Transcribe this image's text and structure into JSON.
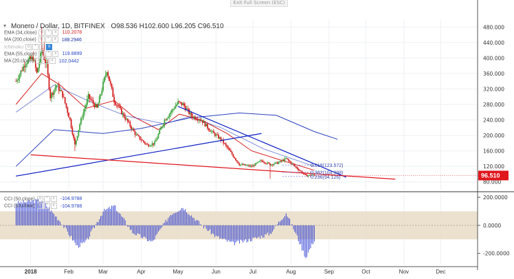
{
  "ui": {
    "exit_fullscreen": "Exit Full Screen (ESC)"
  },
  "header": {
    "symbol": "Monero / Dollar, 1D, BITFINEX",
    "open": "O98.536",
    "high": "H102.600",
    "low": "L96.205",
    "close": "C96.510"
  },
  "indicators": [
    {
      "name": "EMA (34,close)",
      "value": "110.2078",
      "color": "#d51f1f"
    },
    {
      "name": "MA (200,close)",
      "value": "188.2946",
      "color": "#1b2ea6"
    },
    {
      "name": "Ichimoku",
      "value": "",
      "color": "#b4b4b4"
    },
    {
      "name": "EMA (55,close)",
      "value": "119.8899",
      "color": "#2a47c4"
    },
    {
      "name": "MA (20,close)",
      "value": "102.0442",
      "color": "#2a47c4"
    }
  ],
  "cci_legend": [
    {
      "name": "CCI (50,close)",
      "value": "-104.9788"
    },
    {
      "name": "CCI (50,close)",
      "value": "-104.9788"
    }
  ],
  "colors": {
    "up": "#3da33d",
    "down": "#d51f1f",
    "trend_blue": "#0d1fc6",
    "trend_red": "#e0161d",
    "ema34": "#d51f1f",
    "ma200": "#2a3fbd",
    "cci": "#1f2fd0",
    "cci_band": "#e8dcc6",
    "current": "#e0161d"
  },
  "chart_data": [
    {
      "type": "candlestick",
      "title": "Monero / Dollar, 1D, BITFINEX",
      "x": {
        "type": "date",
        "ticks": [
          "2018",
          "Feb",
          "Mar",
          "Apr",
          "May",
          "Jun",
          "Jul",
          "Aug",
          "Sep",
          "Oct",
          "Nov",
          "Dec"
        ]
      },
      "y": {
        "ticks": [
          80,
          120,
          160,
          200,
          240,
          280,
          320,
          360,
          400,
          440,
          480
        ],
        "tick_labels": [
          "80.000",
          "120.000",
          "160.000",
          "200.000",
          "240.000",
          "280.000",
          "320.000",
          "360.000",
          "400.000",
          "440.000",
          "480.000"
        ],
        "range": [
          60,
          500
        ]
      },
      "current_price": {
        "value": 96.51,
        "label": "96.510"
      },
      "price_path": [
        [
          "2017-12-20",
          340
        ],
        [
          "2017-12-28",
          390
        ],
        [
          "2018-01-03",
          400
        ],
        [
          "2018-01-06",
          360
        ],
        [
          "2018-01-10",
          420
        ],
        [
          "2018-01-14",
          380
        ],
        [
          "2018-01-17",
          300
        ],
        [
          "2018-01-22",
          330
        ],
        [
          "2018-01-27",
          305
        ],
        [
          "2018-02-02",
          240
        ],
        [
          "2018-02-06",
          175
        ],
        [
          "2018-02-10",
          230
        ],
        [
          "2018-02-17",
          300
        ],
        [
          "2018-02-24",
          270
        ],
        [
          "2018-03-04",
          370
        ],
        [
          "2018-03-10",
          290
        ],
        [
          "2018-03-18",
          250
        ],
        [
          "2018-03-28",
          200
        ],
        [
          "2018-04-06",
          175
        ],
        [
          "2018-04-12",
          180
        ],
        [
          "2018-04-20",
          240
        ],
        [
          "2018-04-25",
          260
        ],
        [
          "2018-05-01",
          285
        ],
        [
          "2018-05-05",
          280
        ],
        [
          "2018-05-12",
          250
        ],
        [
          "2018-05-20",
          240
        ],
        [
          "2018-05-28",
          210
        ],
        [
          "2018-06-05",
          190
        ],
        [
          "2018-06-12",
          160
        ],
        [
          "2018-06-20",
          125
        ],
        [
          "2018-06-30",
          120
        ],
        [
          "2018-07-08",
          135
        ],
        [
          "2018-07-15",
          125
        ],
        [
          "2018-07-22",
          130
        ],
        [
          "2018-07-28",
          140
        ],
        [
          "2018-08-05",
          118
        ],
        [
          "2018-08-13",
          96
        ],
        [
          "2018-08-18",
          98
        ],
        [
          "2018-08-20",
          96.51
        ]
      ],
      "volatility_spikes": [
        [
          "2018-01-10",
          480
        ],
        [
          "2018-01-12",
          440
        ],
        [
          "2018-02-06",
          160
        ],
        [
          "2018-07-15",
          88
        ]
      ],
      "series": [
        {
          "name": "EMA (34,close)",
          "points": [
            [
              "2017-12-20",
              280
            ],
            [
              "2018-01-10",
              360
            ],
            [
              "2018-01-25",
              330
            ],
            [
              "2018-02-15",
              270
            ],
            [
              "2018-03-10",
              290
            ],
            [
              "2018-03-25",
              250
            ],
            [
              "2018-04-15",
              215
            ],
            [
              "2018-05-02",
              255
            ],
            [
              "2018-05-20",
              240
            ],
            [
              "2018-06-10",
              205
            ],
            [
              "2018-06-30",
              160
            ],
            [
              "2018-07-20",
              140
            ],
            [
              "2018-08-20",
              110
            ]
          ]
        },
        {
          "name": "MA (200,close)",
          "points": [
            [
              "2017-12-20",
              120
            ],
            [
              "2018-01-20",
              215
            ],
            [
              "2018-03-01",
              205
            ],
            [
              "2018-04-01",
              218
            ],
            [
              "2018-05-10",
              245
            ],
            [
              "2018-06-20",
              258
            ],
            [
              "2018-07-20",
              252
            ],
            [
              "2018-08-20",
              210
            ],
            [
              "2018-09-08",
              190
            ]
          ]
        },
        {
          "name": "EMA (55,close)",
          "points": [
            [
              "2017-12-20",
              260
            ],
            [
              "2018-01-20",
              330
            ],
            [
              "2018-02-20",
              285
            ],
            [
              "2018-03-20",
              250
            ],
            [
              "2018-04-20",
              230
            ],
            [
              "2018-05-10",
              248
            ],
            [
              "2018-06-05",
              220
            ],
            [
              "2018-07-10",
              165
            ],
            [
              "2018-08-20",
              120
            ]
          ]
        }
      ],
      "trendlines": [
        {
          "color": "blue",
          "from": [
            "2017-12-20",
            95
          ],
          "to": [
            "2018-07-08",
            205
          ]
        },
        {
          "color": "blue",
          "from": [
            "2018-05-01",
            275
          ],
          "to": [
            "2018-09-15",
            92
          ]
        },
        {
          "color": "red",
          "from": [
            "2018-01-01",
            150
          ],
          "to": [
            "2018-10-25",
            87
          ]
        }
      ],
      "fib_levels": [
        {
          "label": "0.618(123.572)",
          "value": 123.572
        },
        {
          "label": "0.382(104.998)",
          "value": 104.998
        },
        {
          "label": "0.236(94.126)",
          "value": 94.126
        }
      ]
    },
    {
      "type": "line",
      "title": "CCI (50,close)",
      "y": {
        "ticks": [
          200,
          0,
          -200
        ],
        "tick_labels": [
          "200.0000",
          "0.0000",
          "-200.0000"
        ],
        "range": [
          -280,
          230
        ]
      },
      "band": [
        -100,
        100
      ],
      "values_path": [
        [
          "2017-12-20",
          160
        ],
        [
          "2018-01-10",
          180
        ],
        [
          "2018-01-25",
          30
        ],
        [
          "2018-02-08",
          -150
        ],
        [
          "2018-02-15",
          -120
        ],
        [
          "2018-03-01",
          100
        ],
        [
          "2018-03-10",
          140
        ],
        [
          "2018-03-25",
          -50
        ],
        [
          "2018-04-10",
          -120
        ],
        [
          "2018-04-25",
          80
        ],
        [
          "2018-05-05",
          130
        ],
        [
          "2018-05-18",
          20
        ],
        [
          "2018-06-01",
          -80
        ],
        [
          "2018-06-15",
          -130
        ],
        [
          "2018-06-30",
          -100
        ],
        [
          "2018-07-15",
          -60
        ],
        [
          "2018-07-28",
          90
        ],
        [
          "2018-08-05",
          -60
        ],
        [
          "2018-08-13",
          -230
        ],
        [
          "2018-08-20",
          -105
        ]
      ]
    }
  ]
}
